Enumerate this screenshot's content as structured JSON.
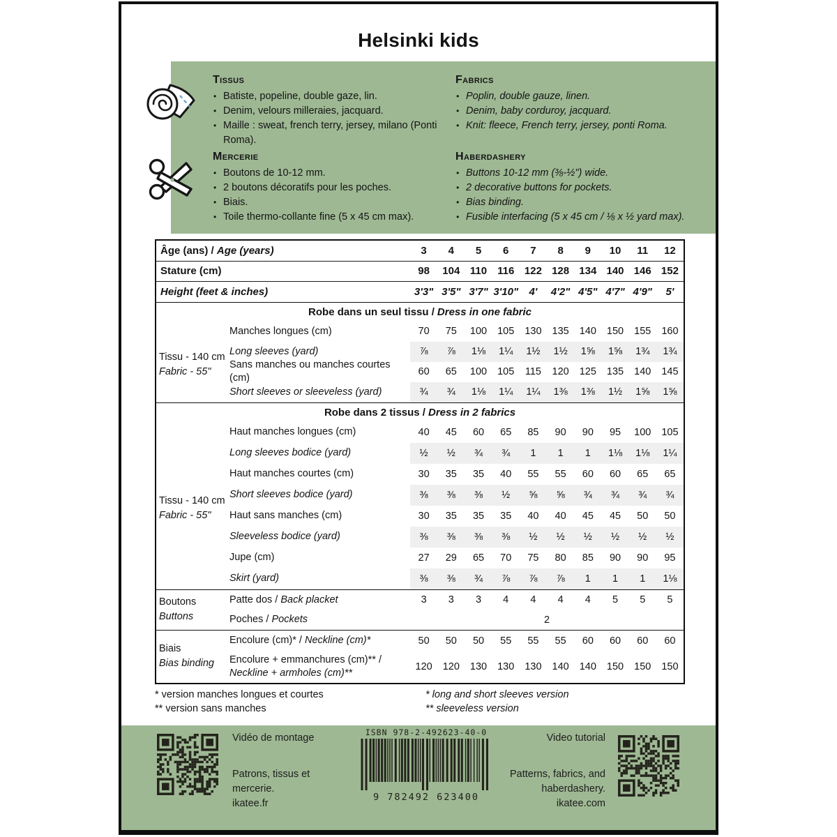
{
  "title": "Helsinki kids",
  "colors": {
    "green": "#9EB893",
    "shade": "#EFEFEF",
    "ink": "#141414"
  },
  "info_box": {
    "tissus": {
      "heading": "Tissus",
      "items": [
        "Batiste, popeline, double gaze, lin.",
        "Denim, velours milleraies, jacquard.",
        "Maille : sweat, french terry, jersey, milano (Ponti Roma)."
      ]
    },
    "fabrics": {
      "heading": "Fabrics",
      "items": [
        "Poplin, double gauze, linen.",
        "Denim, baby corduroy, jacquard.",
        "Knit: fleece, French terry, jersey, ponti Roma."
      ]
    },
    "mercerie": {
      "heading": "Mercerie",
      "items": [
        "Boutons de 10-12 mm.",
        "2 boutons décoratifs pour les poches.",
        "Biais.",
        "Toile thermo-collante fine (5 x 45 cm max)."
      ]
    },
    "haberdashery": {
      "heading": "Haberdashery",
      "items": [
        "Buttons 10-12 mm (⅜-½\") wide.",
        "2 decorative buttons for pockets.",
        "Bias binding.",
        "Fusible interfacing (5 x 45 cm / ⅛ x ½ yard max)."
      ]
    }
  },
  "size_table": {
    "header_rows": [
      {
        "label_fr": "Âge (ans)",
        "label_en": "Age (years)",
        "values": [
          "3",
          "4",
          "5",
          "6",
          "7",
          "8",
          "9",
          "10",
          "11",
          "12"
        ]
      },
      {
        "label_fr": "Stature (cm)",
        "label_en": "",
        "values": [
          "98",
          "104",
          "110",
          "116",
          "122",
          "128",
          "134",
          "140",
          "146",
          "152"
        ]
      },
      {
        "label_fr": "",
        "label_en": "Height (feet & inches)",
        "values": [
          "3'3\"",
          "3'5\"",
          "3'7\"",
          "3'10\"",
          "4'",
          "4'2\"",
          "4'5\"",
          "4'7\"",
          "4'9\"",
          "5'"
        ]
      }
    ],
    "sections": [
      {
        "group_fr": "Tissu - 140 cm",
        "group_en": "Fabric - 55\"",
        "title_fr": "Robe dans un seul tissu",
        "title_en": "Dress in one fabric",
        "rows": [
          {
            "fr": "Manches longues (cm)",
            "en": "",
            "shaded": false,
            "values": [
              "70",
              "75",
              "100",
              "105",
              "130",
              "135",
              "140",
              "150",
              "155",
              "160"
            ]
          },
          {
            "fr": "",
            "en": "Long sleeves (yard)",
            "shaded": true,
            "values": [
              "⅞",
              "⅞",
              "1⅛",
              "1¼",
              "1½",
              "1½",
              "1⅝",
              "1⅝",
              "1¾",
              "1¾"
            ]
          },
          {
            "fr": "Sans manches ou manches courtes (cm)",
            "en": "",
            "shaded": false,
            "values": [
              "60",
              "65",
              "100",
              "105",
              "115",
              "120",
              "125",
              "135",
              "140",
              "145"
            ]
          },
          {
            "fr": "",
            "en": "Short sleeves or sleeveless (yard)",
            "shaded": true,
            "values": [
              "¾",
              "¾",
              "1⅛",
              "1¼",
              "1¼",
              "1⅜",
              "1⅜",
              "1½",
              "1⅝",
              "1⅝"
            ]
          }
        ]
      },
      {
        "group_fr": "Tissu - 140 cm",
        "group_en": "Fabric - 55\"",
        "title_fr": "Robe dans 2 tissus",
        "title_en": "Dress in 2 fabrics",
        "rows": [
          {
            "fr": "Haut manches longues (cm)",
            "en": "",
            "shaded": false,
            "values": [
              "40",
              "45",
              "60",
              "65",
              "85",
              "90",
              "90",
              "95",
              "100",
              "105"
            ]
          },
          {
            "fr": "",
            "en": "Long sleeves bodice (yard)",
            "shaded": true,
            "values": [
              "½",
              "½",
              "¾",
              "¾",
              "1",
              "1",
              "1",
              "1⅛",
              "1⅛",
              "1¼"
            ]
          },
          {
            "fr": "Haut manches courtes (cm)",
            "en": "",
            "shaded": false,
            "values": [
              "30",
              "35",
              "35",
              "40",
              "55",
              "55",
              "60",
              "60",
              "65",
              "65"
            ]
          },
          {
            "fr": "",
            "en": "Short sleeves bodice (yard)",
            "shaded": true,
            "values": [
              "⅜",
              "⅜",
              "⅜",
              "½",
              "⅝",
              "⅝",
              "¾",
              "¾",
              "¾",
              "¾"
            ]
          },
          {
            "fr": "Haut sans manches (cm)",
            "en": "",
            "shaded": false,
            "values": [
              "30",
              "35",
              "35",
              "35",
              "40",
              "40",
              "45",
              "45",
              "50",
              "50"
            ]
          },
          {
            "fr": "",
            "en": "Sleeveless bodice (yard)",
            "shaded": true,
            "values": [
              "⅜",
              "⅜",
              "⅜",
              "⅜",
              "½",
              "½",
              "½",
              "½",
              "½",
              "½"
            ]
          },
          {
            "fr": "Jupe (cm)",
            "en": "",
            "shaded": false,
            "values": [
              "27",
              "29",
              "65",
              "70",
              "75",
              "80",
              "85",
              "90",
              "90",
              "95"
            ]
          },
          {
            "fr": "",
            "en": "Skirt (yard)",
            "shaded": true,
            "values": [
              "⅜",
              "⅜",
              "¾",
              "⅞",
              "⅞",
              "⅞",
              "1",
              "1",
              "1",
              "1⅛"
            ]
          }
        ]
      },
      {
        "group_fr": "Boutons",
        "group_en": "Buttons",
        "title_fr": "",
        "title_en": "",
        "rows": [
          {
            "fr": "Patte dos",
            "en": "Back placket",
            "shaded": false,
            "values": [
              "3",
              "3",
              "3",
              "4",
              "4",
              "4",
              "4",
              "5",
              "5",
              "5"
            ]
          },
          {
            "fr": "Poches",
            "en": "Pockets",
            "shaded": false,
            "merged": "2"
          }
        ]
      },
      {
        "group_fr": "Biais",
        "group_en": "Bias binding",
        "title_fr": "",
        "title_en": "",
        "rows": [
          {
            "fr": "Encolure (cm)*",
            "en": "Neckline (cm)*",
            "shaded": false,
            "values": [
              "50",
              "50",
              "50",
              "55",
              "55",
              "55",
              "60",
              "60",
              "60",
              "60"
            ]
          },
          {
            "fr": "Encolure + emmanchures (cm)** /",
            "en": "",
            "en2": "Neckline + armholes (cm)**",
            "shaded": false,
            "values": [
              "120",
              "120",
              "130",
              "130",
              "130",
              "140",
              "140",
              "150",
              "150",
              "150"
            ]
          }
        ]
      }
    ]
  },
  "footnotes": {
    "fr": [
      "* version manches longues et courtes",
      "** version sans manches"
    ],
    "en": [
      "* long and short sleeves version",
      "** sleeveless version"
    ]
  },
  "footer": {
    "left": {
      "title": "Vidéo de montage",
      "lines": [
        "Patrons, tissus et",
        "mercerie."
      ],
      "site": "ikatee.fr"
    },
    "barcode": {
      "isbn": "ISBN 978-2-492623-40-0",
      "digits": "9 782492 623400"
    },
    "right": {
      "title": "Video tutorial",
      "lines": [
        "Patterns, fabrics, and",
        "haberdashery."
      ],
      "site": "ikatee.com"
    }
  }
}
